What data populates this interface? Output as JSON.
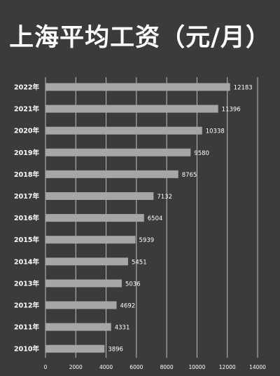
{
  "chart_data": {
    "type": "bar",
    "orientation": "horizontal",
    "title": "上海平均工资（元/月）",
    "categories": [
      "2022年",
      "2021年",
      "2020年",
      "2019年",
      "2018年",
      "2017年",
      "2016年",
      "2015年",
      "2014年",
      "2013年",
      "2012年",
      "2011年",
      "2010年"
    ],
    "values": [
      12183,
      11396,
      10338,
      9580,
      8765,
      7132,
      6504,
      5939,
      5451,
      5036,
      4692,
      4331,
      3896
    ],
    "xlim": [
      0,
      14000
    ],
    "xticks": [
      "0",
      "2000",
      "4000",
      "6000",
      "8000",
      "10000",
      "12000",
      "14000"
    ],
    "xlabel": "",
    "ylabel": "",
    "grid": "vertical",
    "legend": "none",
    "data_labels": true,
    "colors": {
      "background": "#3b3b3b",
      "bar": "#a6a6a6",
      "text": "#ffffff",
      "grid": "#d9d9d9"
    }
  }
}
